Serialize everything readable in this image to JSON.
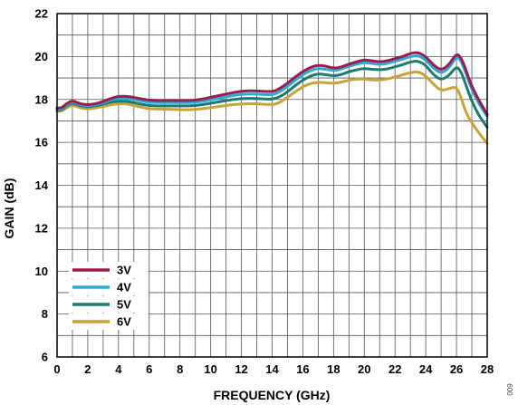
{
  "figure_code": "009",
  "chart_data": {
    "type": "line",
    "xlabel": "FREQUENCY (GHz)",
    "ylabel": "GAIN (dB)",
    "xlim": [
      0,
      28
    ],
    "ylim": [
      6,
      22
    ],
    "x_ticks": [
      0,
      2,
      4,
      6,
      8,
      10,
      12,
      14,
      16,
      18,
      20,
      22,
      24,
      26,
      28
    ],
    "y_ticks": [
      6,
      8,
      10,
      12,
      14,
      16,
      18,
      20,
      22
    ],
    "grid": true,
    "legend_position": "bottom-left",
    "series": [
      {
        "name": "3V",
        "color": "#9b1b4b",
        "x": [
          0,
          0.3,
          0.6,
          1,
          1.5,
          2,
          2.5,
          3,
          3.5,
          4,
          4.5,
          5,
          6,
          7,
          8,
          9,
          10,
          11,
          12,
          13,
          14,
          14.5,
          15,
          15.5,
          16,
          16.5,
          17,
          17.5,
          18,
          18.5,
          19,
          19.5,
          20,
          20.5,
          21,
          21.5,
          22,
          22.5,
          23,
          23.5,
          24,
          24.5,
          25,
          25.5,
          26,
          26.3,
          26.6,
          27,
          27.5,
          28
        ],
        "y": [
          17.6,
          17.6,
          17.8,
          17.95,
          17.8,
          17.75,
          17.8,
          17.9,
          18.05,
          18.15,
          18.15,
          18.1,
          17.95,
          17.95,
          17.95,
          17.95,
          18.1,
          18.25,
          18.4,
          18.4,
          18.35,
          18.5,
          18.75,
          19.05,
          19.3,
          19.5,
          19.6,
          19.55,
          19.45,
          19.5,
          19.65,
          19.75,
          19.85,
          19.8,
          19.75,
          19.8,
          19.9,
          20.0,
          20.15,
          20.2,
          20.0,
          19.6,
          19.35,
          19.6,
          20.15,
          19.95,
          19.4,
          18.6,
          17.9,
          17.3
        ]
      },
      {
        "name": "4V",
        "color": "#2ea8d6",
        "x": [
          0,
          0.3,
          0.6,
          1,
          1.5,
          2,
          2.5,
          3,
          3.5,
          4,
          4.5,
          5,
          6,
          7,
          8,
          9,
          10,
          11,
          12,
          13,
          14,
          14.5,
          15,
          15.5,
          16,
          16.5,
          17,
          17.5,
          18,
          18.5,
          19,
          19.5,
          20,
          20.5,
          21,
          21.5,
          22,
          22.5,
          23,
          23.5,
          24,
          24.5,
          25,
          25.5,
          26,
          26.3,
          26.6,
          27,
          27.5,
          28
        ],
        "y": [
          17.55,
          17.55,
          17.75,
          17.9,
          17.75,
          17.7,
          17.75,
          17.85,
          17.98,
          18.05,
          18.05,
          18.0,
          17.85,
          17.85,
          17.85,
          17.85,
          17.98,
          18.12,
          18.25,
          18.25,
          18.2,
          18.35,
          18.6,
          18.9,
          19.15,
          19.35,
          19.45,
          19.4,
          19.35,
          19.4,
          19.55,
          19.65,
          19.72,
          19.68,
          19.62,
          19.68,
          19.78,
          19.88,
          20.0,
          20.05,
          19.85,
          19.45,
          19.2,
          19.45,
          20.0,
          19.8,
          19.25,
          18.45,
          17.75,
          17.2
        ]
      },
      {
        "name": "5V",
        "color": "#1e7a6e",
        "x": [
          0,
          0.3,
          0.6,
          1,
          1.5,
          2,
          2.5,
          3,
          3.5,
          4,
          4.5,
          5,
          6,
          7,
          8,
          9,
          10,
          11,
          12,
          13,
          14,
          14.5,
          15,
          15.5,
          16,
          16.5,
          17,
          17.5,
          18,
          18.5,
          19,
          19.5,
          20,
          20.5,
          21,
          21.5,
          22,
          22.5,
          23,
          23.5,
          24,
          24.5,
          25,
          25.5,
          26,
          26.3,
          26.6,
          27,
          27.5,
          28
        ],
        "y": [
          17.5,
          17.5,
          17.7,
          17.85,
          17.7,
          17.65,
          17.7,
          17.78,
          17.88,
          17.92,
          17.92,
          17.85,
          17.7,
          17.7,
          17.7,
          17.7,
          17.82,
          17.95,
          18.05,
          18.05,
          18.0,
          18.12,
          18.35,
          18.65,
          18.9,
          19.1,
          19.2,
          19.15,
          19.1,
          19.15,
          19.3,
          19.38,
          19.45,
          19.4,
          19.38,
          19.42,
          19.52,
          19.62,
          19.75,
          19.8,
          19.6,
          19.15,
          18.9,
          19.1,
          19.55,
          19.3,
          18.7,
          17.9,
          17.2,
          16.7
        ]
      },
      {
        "name": "6V",
        "color": "#c9a23a",
        "x": [
          0,
          0.3,
          0.6,
          1,
          1.5,
          2,
          2.5,
          3,
          3.5,
          4,
          4.5,
          5,
          6,
          7,
          8,
          9,
          10,
          11,
          12,
          13,
          14,
          14.5,
          15,
          15.5,
          16,
          16.5,
          17,
          17.5,
          18,
          18.5,
          19,
          19.5,
          20,
          20.5,
          21,
          21.5,
          22,
          22.5,
          23,
          23.5,
          24,
          24.5,
          25,
          25.5,
          26,
          26.3,
          26.6,
          27,
          27.5,
          28
        ],
        "y": [
          17.45,
          17.45,
          17.6,
          17.75,
          17.6,
          17.55,
          17.6,
          17.68,
          17.75,
          17.8,
          17.8,
          17.72,
          17.55,
          17.55,
          17.52,
          17.52,
          17.62,
          17.72,
          17.8,
          17.8,
          17.75,
          17.85,
          18.1,
          18.35,
          18.6,
          18.75,
          18.8,
          18.78,
          18.75,
          18.8,
          18.9,
          18.95,
          18.95,
          18.9,
          18.9,
          18.95,
          19.05,
          19.15,
          19.25,
          19.3,
          19.1,
          18.7,
          18.4,
          18.5,
          18.6,
          18.1,
          17.4,
          16.9,
          16.4,
          15.95
        ]
      }
    ]
  }
}
